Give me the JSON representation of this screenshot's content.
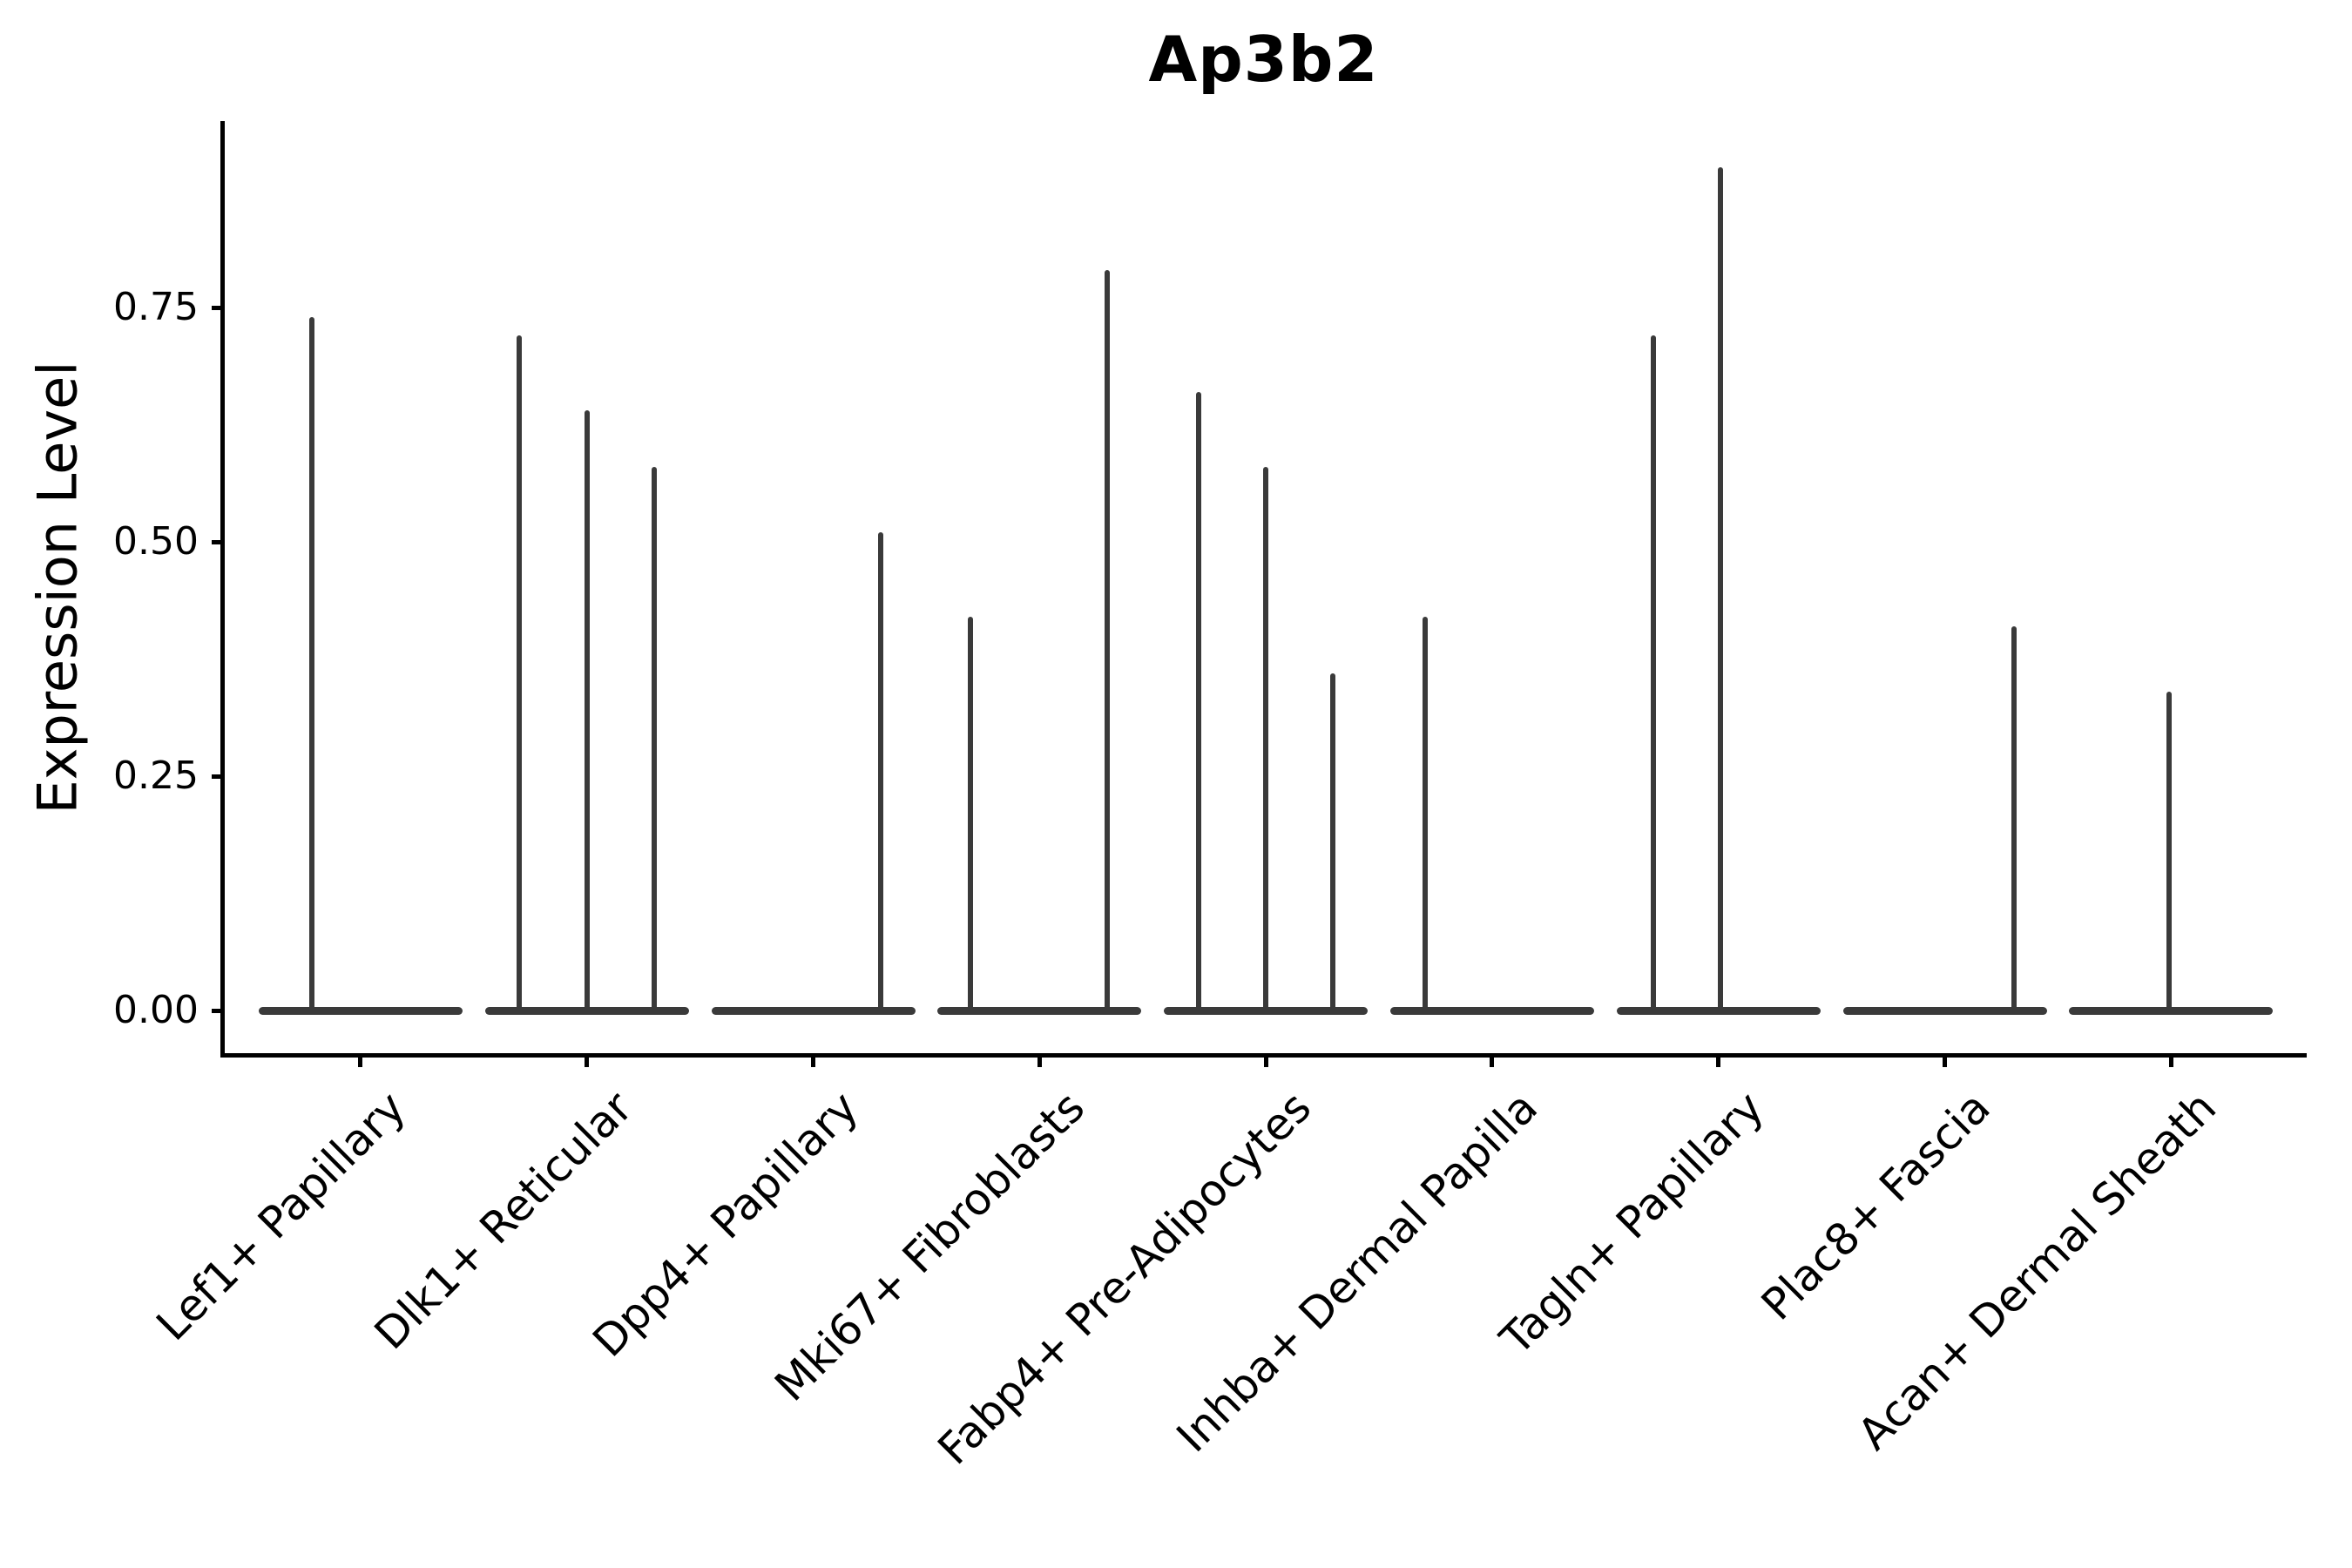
{
  "title": "Ap3b2",
  "chart_data": {
    "type": "violin",
    "title": "Ap3b2",
    "xlabel": "",
    "ylabel": "Expression Level",
    "ylim": [
      -0.04,
      0.95
    ],
    "y_ticks": [
      0,
      0.25,
      0.5,
      0.75
    ],
    "y_tick_labels": [
      "0.00",
      "0.25",
      "0.50",
      "0.75"
    ],
    "x_tick_rotation": -45,
    "grid": "off",
    "legend": "none",
    "ink_color": "#000000",
    "violin_color": "#3a3a3a",
    "categories": [
      "Lef1+ Papillary",
      "Dlk1+ Reticular",
      "Dpp4+ Papillary",
      "Mki67+ Fibroblasts",
      "Fabp4+ Pre-Adipocytes",
      "Inhba+ Dermal Papilla",
      "Tagln+ Papillary",
      "Plac8+ Fascia",
      "Acan+ Dermal Sheath"
    ],
    "series": [
      {
        "category": "Lef1+ Papillary",
        "baseline_value": 0,
        "spikes": [
          {
            "pos": 0.26,
            "value": 0.74
          }
        ]
      },
      {
        "category": "Dlk1+ Reticular",
        "baseline_value": 0,
        "spikes": [
          {
            "pos": 0.17,
            "value": 0.72
          },
          {
            "pos": 0.5,
            "value": 0.64
          },
          {
            "pos": 0.83,
            "value": 0.58
          }
        ]
      },
      {
        "category": "Dpp4+ Papillary",
        "baseline_value": 0,
        "spikes": [
          {
            "pos": 0.83,
            "value": 0.51
          }
        ]
      },
      {
        "category": "Mki67+ Fibroblasts",
        "baseline_value": 0,
        "spikes": [
          {
            "pos": 0.16,
            "value": 0.42
          },
          {
            "pos": 0.83,
            "value": 0.79
          }
        ]
      },
      {
        "category": "Fabp4+ Pre-Adipocytes",
        "baseline_value": 0,
        "spikes": [
          {
            "pos": 0.17,
            "value": 0.66
          },
          {
            "pos": 0.5,
            "value": 0.58
          },
          {
            "pos": 0.83,
            "value": 0.36
          }
        ]
      },
      {
        "category": "Inhba+ Dermal Papilla",
        "baseline_value": 0,
        "spikes": [
          {
            "pos": 0.17,
            "value": 0.42
          }
        ]
      },
      {
        "category": "Tagln+ Papillary",
        "baseline_value": 0,
        "spikes": [
          {
            "pos": 0.18,
            "value": 0.72
          },
          {
            "pos": 0.51,
            "value": 0.9
          }
        ]
      },
      {
        "category": "Plac8+ Fascia",
        "baseline_value": 0,
        "spikes": [
          {
            "pos": 0.84,
            "value": 0.41
          }
        ]
      },
      {
        "category": "Acan+ Dermal Sheath",
        "baseline_value": 0,
        "spikes": [
          {
            "pos": 0.49,
            "value": 0.34
          }
        ]
      }
    ]
  }
}
